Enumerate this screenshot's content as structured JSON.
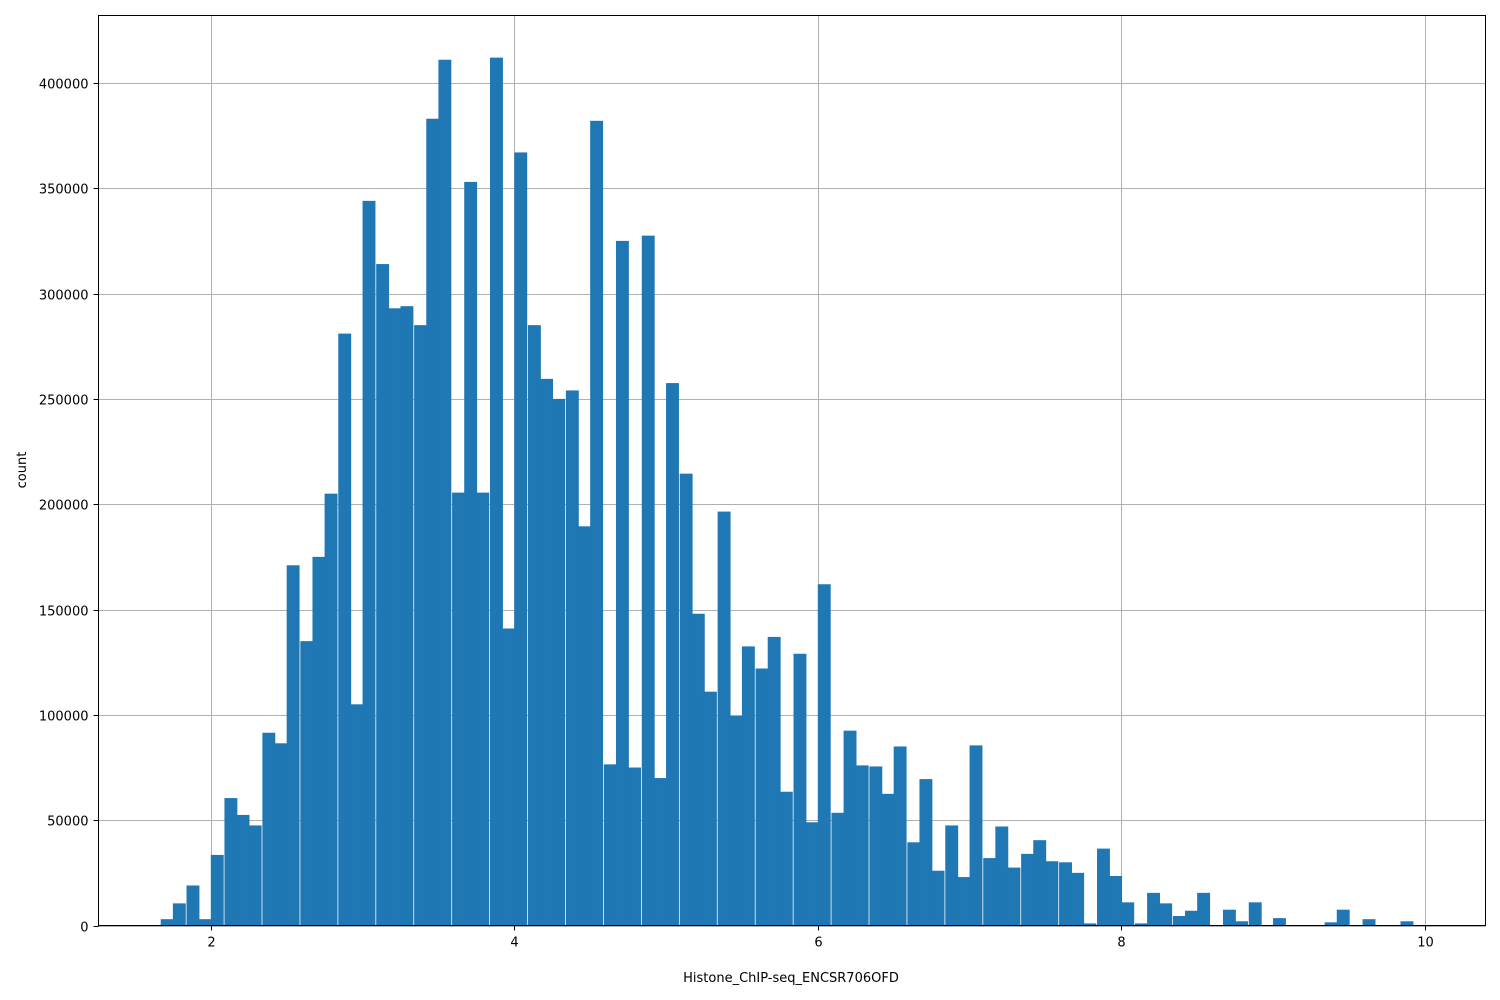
{
  "chart_data": {
    "type": "bar",
    "histogram": true,
    "xlabel": "Histone_ChIP-seq_ENCSR706OFD",
    "ylabel": "count",
    "xlim": [
      1.26,
      10.4
    ],
    "ylim": [
      0,
      432000
    ],
    "grid": true,
    "bar_color": "#1f77b4",
    "bin_width": 0.083,
    "x_ticks": [
      2,
      4,
      6,
      8,
      10
    ],
    "x_tick_labels": [
      "2",
      "4",
      "6",
      "8",
      "10"
    ],
    "y_ticks": [
      0,
      50000,
      100000,
      150000,
      200000,
      250000,
      300000,
      350000,
      400000
    ],
    "y_tick_labels": [
      "0",
      "50000",
      "100000",
      "150000",
      "200000",
      "250000",
      "300000",
      "350000",
      "400000"
    ],
    "bin_starts": [
      1.67,
      1.75,
      1.84,
      1.92,
      2.0,
      2.09,
      2.17,
      2.25,
      2.34,
      2.42,
      2.5,
      2.59,
      2.67,
      2.75,
      2.84,
      2.92,
      3.0,
      3.09,
      3.17,
      3.25,
      3.34,
      3.42,
      3.5,
      3.59,
      3.67,
      3.75,
      3.84,
      3.92,
      4.0,
      4.09,
      4.17,
      4.25,
      4.34,
      4.42,
      4.5,
      4.59,
      4.67,
      4.75,
      4.84,
      4.92,
      5.0,
      5.09,
      5.17,
      5.25,
      5.34,
      5.42,
      5.5,
      5.59,
      5.67,
      5.75,
      5.84,
      5.92,
      6.0,
      6.09,
      6.17,
      6.25,
      6.34,
      6.42,
      6.5,
      6.59,
      6.67,
      6.75,
      6.84,
      6.92,
      7.0,
      7.09,
      7.17,
      7.25,
      7.34,
      7.42,
      7.5,
      7.59,
      7.67,
      7.75,
      7.84,
      7.92,
      8.0,
      8.09,
      8.17,
      8.25,
      8.34,
      8.42,
      8.5,
      8.59,
      8.67,
      8.75,
      8.84,
      8.92,
      9.0,
      9.09,
      9.17,
      9.25,
      9.34,
      9.42,
      9.5,
      9.59,
      9.67,
      9.75,
      9.84,
      9.92
    ],
    "values": [
      3000,
      10500,
      19000,
      3000,
      33500,
      60500,
      52500,
      47500,
      91500,
      86500,
      171000,
      135000,
      175000,
      205000,
      281000,
      105000,
      344000,
      314000,
      293000,
      294000,
      285000,
      383000,
      411000,
      205500,
      353000,
      205500,
      412000,
      141000,
      367000,
      285000,
      259500,
      250000,
      254000,
      189500,
      382000,
      76500,
      325000,
      75000,
      327500,
      70000,
      257500,
      214500,
      148000,
      111000,
      196500,
      99500,
      132500,
      122000,
      137000,
      63500,
      129000,
      49000,
      162000,
      53500,
      92500,
      76000,
      75500,
      62500,
      85000,
      39500,
      69500,
      26000,
      47500,
      23000,
      85500,
      32000,
      47000,
      27500,
      34000,
      40500,
      30500,
      30000,
      25000,
      1000,
      36500,
      23500,
      11000,
      1000,
      15500,
      10500,
      4500,
      7000,
      15500,
      0,
      7500,
      2000,
      11000,
      0,
      3500,
      0,
      0,
      0,
      1500,
      7500,
      0,
      3000,
      0,
      0,
      2000,
      0
    ]
  }
}
